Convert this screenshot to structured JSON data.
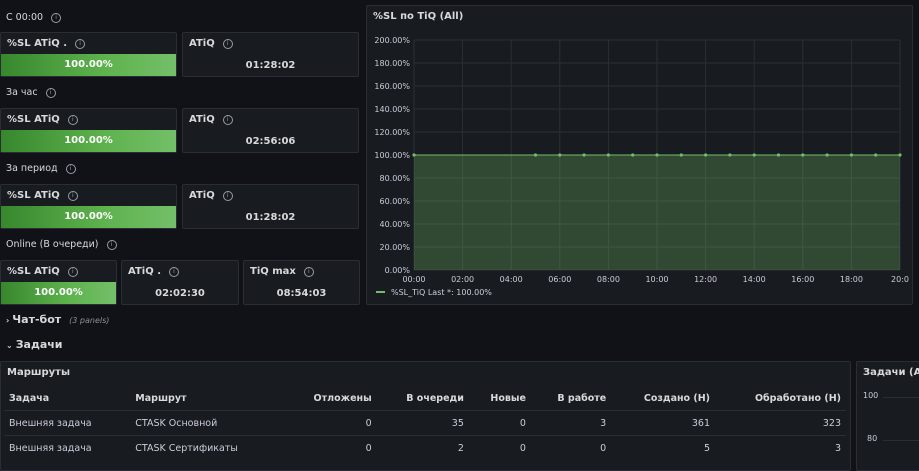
{
  "sections": {
    "since": "С 00:00",
    "hour": "За час",
    "period": "За период",
    "online": "Online (В очереди)"
  },
  "stats": {
    "since_sl": {
      "title": "%SL ATiQ .",
      "value": "100.00%",
      "level": 100
    },
    "since_atiq": {
      "title": "ATiQ",
      "value": "01:28:02"
    },
    "hour_sl": {
      "title": "%SL ATiQ",
      "value": "100.00%",
      "level": 100
    },
    "hour_atiq": {
      "title": "ATiQ",
      "value": "02:56:06"
    },
    "period_sl": {
      "title": "%SL ATiQ",
      "value": "100.00%",
      "level": 100
    },
    "period_atiq": {
      "title": "ATiQ",
      "value": "01:28:02"
    },
    "online_sl": {
      "title": "%SL ATiQ",
      "value": "100.00%",
      "level": 100
    },
    "online_atiq": {
      "title": "ATiQ .",
      "value": "02:02:30"
    },
    "online_tiqmax": {
      "title": "TiQ max",
      "value": "08:54:03"
    }
  },
  "chart_panel": {
    "title": "%SL по TiQ (All)",
    "legend_text": "%SL_TiQ  Last *: 100.00%"
  },
  "chart_data": {
    "type": "area",
    "title": "%SL по TiQ (All)",
    "x_ticks": [
      "00:00",
      "02:00",
      "04:00",
      "06:00",
      "08:00",
      "10:00",
      "12:00",
      "14:00",
      "16:00",
      "18:00",
      "20:0"
    ],
    "y_ticks": [
      "0.00%",
      "20.00%",
      "40.00%",
      "60.00%",
      "80.00%",
      "100.00%",
      "120.00%",
      "140.00%",
      "160.00%",
      "180.00%",
      "200.00%"
    ],
    "ylim": [
      0,
      200
    ],
    "xlim": [
      0,
      20
    ],
    "series": [
      {
        "name": "%SL_TiQ",
        "color": "#73bf69",
        "x": [
          0,
          5,
          6,
          7,
          8,
          9,
          10,
          11,
          12,
          13,
          14,
          15,
          16,
          17,
          18,
          19,
          20
        ],
        "values": [
          100,
          100,
          100,
          100,
          100,
          100,
          100,
          100,
          100,
          100,
          100,
          100,
          100,
          100,
          100,
          100,
          100
        ]
      }
    ],
    "legend": "bottom-left",
    "grid": true
  },
  "rows": {
    "chatbot": {
      "label": "Чат-бот",
      "note": "(3 panels)"
    },
    "tasks": {
      "label": "Задачи"
    }
  },
  "routes": {
    "title": "Маршруты",
    "columns": [
      "Задача",
      "Маршрут",
      "Отложены",
      "В очереди",
      "Новые",
      "В работе",
      "Создано (Н)",
      "Обработано (Н)"
    ],
    "rows": [
      [
        "Внешняя задача",
        "CTASK Основной",
        "0",
        "35",
        "0",
        "3",
        "361",
        "323"
      ],
      [
        "Внешняя задача",
        "CTASK Сертификаты",
        "0",
        "2",
        "0",
        "0",
        "5",
        "3"
      ]
    ]
  },
  "tasks_chart": {
    "title": "Задачи (All)",
    "y_ticks": [
      "100",
      "80"
    ]
  }
}
